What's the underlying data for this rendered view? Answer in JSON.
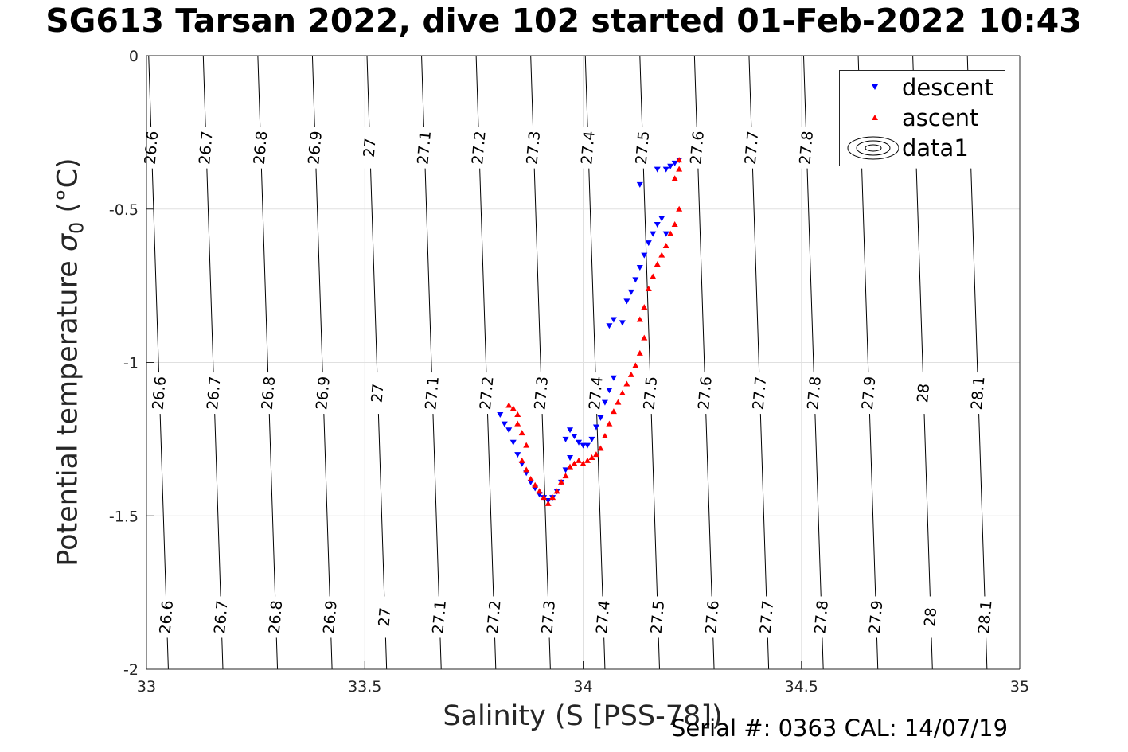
{
  "title": "SG613 Tarsan 2022, dive 102 started 01-Feb-2022 10:43",
  "footer": "Serial #: 0363  CAL: 14/07/19",
  "colors": {
    "descent": "#0000ff",
    "ascent": "#ff0000",
    "contour": "#000000",
    "grid": "#e0e0e0",
    "axis": "#262626"
  },
  "chart_data": {
    "type": "scatter",
    "xlabel": "Salinity (S [PSS-78])",
    "ylabel": "Potential temperature σ₀ (°C)",
    "ylabel_parts": [
      "Potential temperature ",
      "σ",
      "0",
      " (°C)"
    ],
    "xlim": [
      33,
      35
    ],
    "ylim": [
      -2,
      0
    ],
    "y_reversed": true,
    "grid": true,
    "legend_position": "top-right",
    "xticks": [
      "33",
      "33.5",
      "34",
      "34.5",
      "35"
    ],
    "yticks": [
      "0",
      "-0.5",
      "-1",
      "-1.5",
      "-2"
    ],
    "legend": [
      "descent",
      "ascent",
      "data1"
    ],
    "contour_levels": [
      "26.6",
      "26.7",
      "26.8",
      "26.9",
      "27",
      "27.1",
      "27.2",
      "27.3",
      "27.4",
      "27.5",
      "27.6",
      "27.7",
      "27.8",
      "27.9",
      "28",
      "28.1"
    ],
    "contours": [
      {
        "level": "26.6",
        "s_at_t0": 33.005,
        "s_at_tm2": 33.05
      },
      {
        "level": "26.7",
        "s_at_t0": 33.13,
        "s_at_tm2": 33.175
      },
      {
        "level": "26.8",
        "s_at_t0": 33.255,
        "s_at_tm2": 33.3
      },
      {
        "level": "26.9",
        "s_at_t0": 33.38,
        "s_at_tm2": 33.425
      },
      {
        "level": "27",
        "s_at_t0": 33.505,
        "s_at_tm2": 33.55
      },
      {
        "level": "27.1",
        "s_at_t0": 33.63,
        "s_at_tm2": 33.675
      },
      {
        "level": "27.2",
        "s_at_t0": 33.755,
        "s_at_tm2": 33.8
      },
      {
        "level": "27.3",
        "s_at_t0": 33.88,
        "s_at_tm2": 33.925
      },
      {
        "level": "27.4",
        "s_at_t0": 34.005,
        "s_at_tm2": 34.05
      },
      {
        "level": "27.5",
        "s_at_t0": 34.13,
        "s_at_tm2": 34.175
      },
      {
        "level": "27.6",
        "s_at_t0": 34.255,
        "s_at_tm2": 34.3
      },
      {
        "level": "27.7",
        "s_at_t0": 34.38,
        "s_at_tm2": 34.425
      },
      {
        "level": "27.8",
        "s_at_t0": 34.505,
        "s_at_tm2": 34.55
      },
      {
        "level": "27.9",
        "s_at_t0": 34.63,
        "s_at_tm2": 34.675
      },
      {
        "level": "28",
        "s_at_t0": 34.755,
        "s_at_tm2": 34.8
      },
      {
        "level": "28.1",
        "s_at_t0": 34.88,
        "s_at_tm2": 34.925
      }
    ],
    "contour_label_t": [
      -0.3,
      -1.1,
      -1.83
    ],
    "series": [
      {
        "name": "descent",
        "marker": "triangle-down",
        "color": "#0000ff",
        "points": [
          [
            33.81,
            -1.17
          ],
          [
            33.82,
            -1.2
          ],
          [
            33.83,
            -1.22
          ],
          [
            33.84,
            -1.26
          ],
          [
            33.85,
            -1.3
          ],
          [
            33.86,
            -1.33
          ],
          [
            33.87,
            -1.36
          ],
          [
            33.88,
            -1.39
          ],
          [
            33.89,
            -1.41
          ],
          [
            33.9,
            -1.43
          ],
          [
            33.91,
            -1.44
          ],
          [
            33.92,
            -1.45
          ],
          [
            33.93,
            -1.44
          ],
          [
            33.94,
            -1.42
          ],
          [
            33.95,
            -1.39
          ],
          [
            33.96,
            -1.35
          ],
          [
            33.97,
            -1.31
          ],
          [
            33.96,
            -1.25
          ],
          [
            33.97,
            -1.22
          ],
          [
            33.98,
            -1.24
          ],
          [
            33.99,
            -1.26
          ],
          [
            34.0,
            -1.27
          ],
          [
            34.01,
            -1.27
          ],
          [
            34.02,
            -1.25
          ],
          [
            34.03,
            -1.21
          ],
          [
            34.04,
            -1.18
          ],
          [
            34.05,
            -1.13
          ],
          [
            34.06,
            -1.09
          ],
          [
            34.07,
            -1.05
          ],
          [
            34.06,
            -0.88
          ],
          [
            34.07,
            -0.86
          ],
          [
            34.09,
            -0.87
          ],
          [
            34.1,
            -0.8
          ],
          [
            34.11,
            -0.77
          ],
          [
            34.12,
            -0.73
          ],
          [
            34.13,
            -0.69
          ],
          [
            34.14,
            -0.65
          ],
          [
            34.15,
            -0.61
          ],
          [
            34.16,
            -0.58
          ],
          [
            34.17,
            -0.55
          ],
          [
            34.18,
            -0.53
          ],
          [
            34.19,
            -0.58
          ],
          [
            34.13,
            -0.42
          ],
          [
            34.17,
            -0.37
          ],
          [
            34.19,
            -0.37
          ],
          [
            34.2,
            -0.36
          ],
          [
            34.21,
            -0.35
          ],
          [
            34.22,
            -0.34
          ]
        ]
      },
      {
        "name": "ascent",
        "marker": "triangle-up",
        "color": "#ff0000",
        "points": [
          [
            33.83,
            -1.14
          ],
          [
            33.84,
            -1.15
          ],
          [
            33.85,
            -1.17
          ],
          [
            33.85,
            -1.2
          ],
          [
            33.86,
            -1.23
          ],
          [
            33.87,
            -1.27
          ],
          [
            33.86,
            -1.32
          ],
          [
            33.87,
            -1.35
          ],
          [
            33.88,
            -1.38
          ],
          [
            33.89,
            -1.4
          ],
          [
            33.9,
            -1.42
          ],
          [
            33.91,
            -1.44
          ],
          [
            33.92,
            -1.46
          ],
          [
            33.93,
            -1.44
          ],
          [
            33.94,
            -1.42
          ],
          [
            33.95,
            -1.39
          ],
          [
            33.96,
            -1.37
          ],
          [
            33.97,
            -1.34
          ],
          [
            33.98,
            -1.33
          ],
          [
            33.99,
            -1.32
          ],
          [
            34.0,
            -1.33
          ],
          [
            34.01,
            -1.32
          ],
          [
            34.02,
            -1.31
          ],
          [
            34.03,
            -1.3
          ],
          [
            34.04,
            -1.28
          ],
          [
            34.05,
            -1.24
          ],
          [
            34.06,
            -1.2
          ],
          [
            34.07,
            -1.16
          ],
          [
            34.08,
            -1.13
          ],
          [
            34.09,
            -1.1
          ],
          [
            34.1,
            -1.07
          ],
          [
            34.11,
            -1.04
          ],
          [
            34.12,
            -1.01
          ],
          [
            34.13,
            -0.97
          ],
          [
            34.14,
            -0.92
          ],
          [
            34.13,
            -0.86
          ],
          [
            34.14,
            -0.82
          ],
          [
            34.15,
            -0.76
          ],
          [
            34.16,
            -0.72
          ],
          [
            34.17,
            -0.68
          ],
          [
            34.18,
            -0.65
          ],
          [
            34.19,
            -0.62
          ],
          [
            34.2,
            -0.58
          ],
          [
            34.21,
            -0.55
          ],
          [
            34.22,
            -0.5
          ],
          [
            34.21,
            -0.4
          ],
          [
            34.22,
            -0.37
          ],
          [
            34.22,
            -0.34
          ]
        ]
      },
      {
        "name": "data1",
        "marker": "contour",
        "color": "#000000",
        "points": []
      }
    ]
  }
}
